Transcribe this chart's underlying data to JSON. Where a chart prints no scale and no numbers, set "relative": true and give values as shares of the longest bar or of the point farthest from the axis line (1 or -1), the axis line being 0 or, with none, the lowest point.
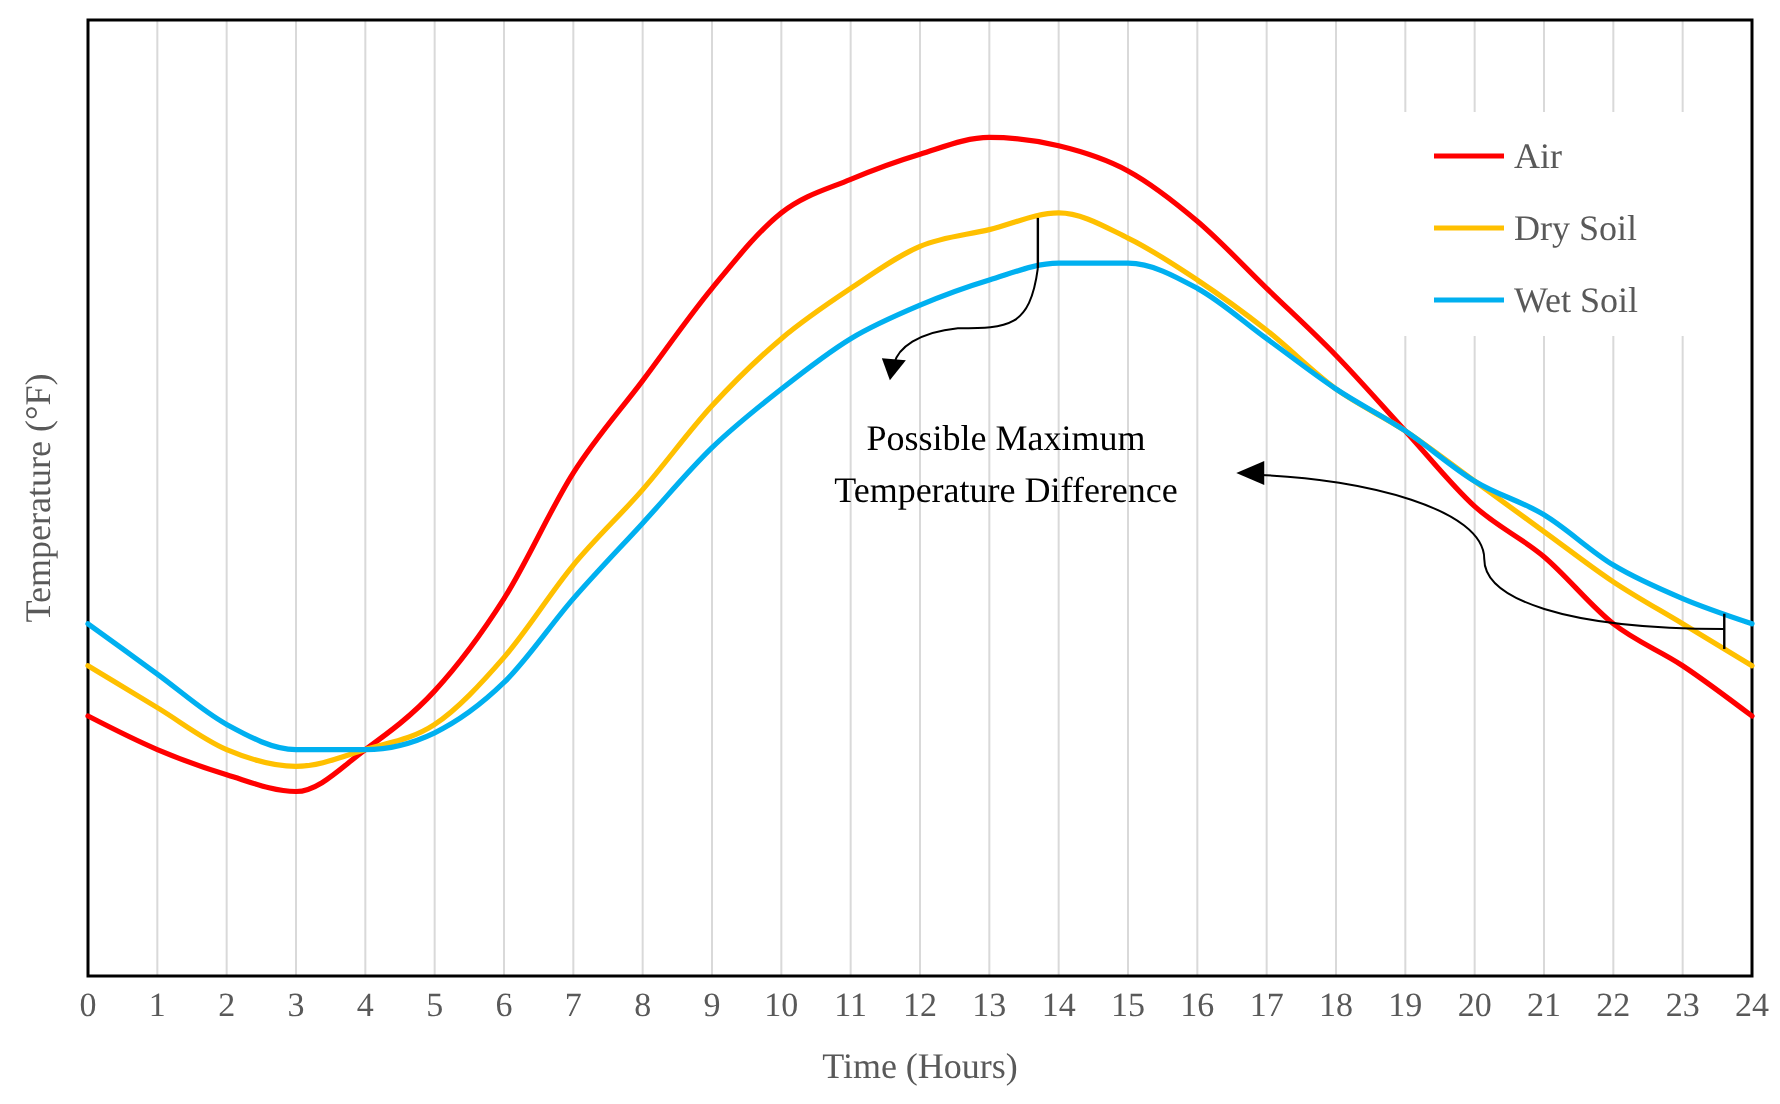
{
  "chart_data": {
    "type": "line",
    "xlabel": "Time (Hours)",
    "ylabel": "Temperature (°F)",
    "relative": true,
    "x": [
      0,
      1,
      2,
      3,
      4,
      5,
      6,
      7,
      8,
      9,
      10,
      11,
      12,
      13,
      14,
      15,
      16,
      17,
      18,
      19,
      20,
      21,
      22,
      23,
      24
    ],
    "xlim": [
      0,
      24
    ],
    "xticks": [
      0,
      1,
      2,
      3,
      4,
      5,
      6,
      7,
      8,
      9,
      10,
      11,
      12,
      13,
      14,
      15,
      16,
      17,
      18,
      19,
      20,
      21,
      22,
      23,
      24
    ],
    "series": [
      {
        "name": "Air",
        "color": "#ff0000",
        "values": [
          0.31,
          0.27,
          0.24,
          0.22,
          0.27,
          0.34,
          0.45,
          0.6,
          0.71,
          0.82,
          0.91,
          0.95,
          0.98,
          1,
          0.99,
          0.96,
          0.9,
          0.82,
          0.74,
          0.65,
          0.56,
          0.5,
          0.42,
          0.37,
          0.31
        ]
      },
      {
        "name": "Dry Soil",
        "color": "#ffc000",
        "values": [
          0.37,
          0.32,
          0.27,
          0.25,
          0.27,
          0.3,
          0.38,
          0.49,
          0.58,
          0.68,
          0.76,
          0.82,
          0.87,
          0.89,
          0.91,
          0.88,
          0.83,
          0.77,
          0.7,
          0.65,
          0.59,
          0.53,
          0.47,
          0.42,
          0.37
        ]
      },
      {
        "name": "Wet Soil",
        "color": "#00b0f0",
        "values": [
          0.42,
          0.36,
          0.3,
          0.27,
          0.27,
          0.29,
          0.35,
          0.45,
          0.54,
          0.63,
          0.7,
          0.76,
          0.8,
          0.83,
          0.85,
          0.85,
          0.82,
          0.76,
          0.7,
          0.65,
          0.59,
          0.55,
          0.49,
          0.45,
          0.42
        ]
      }
    ],
    "annotations": [
      "Possible Maximum\nTemperature Difference"
    ],
    "grid": "x",
    "legend": "top right",
    "marker": "none",
    "line_style": "solid"
  }
}
